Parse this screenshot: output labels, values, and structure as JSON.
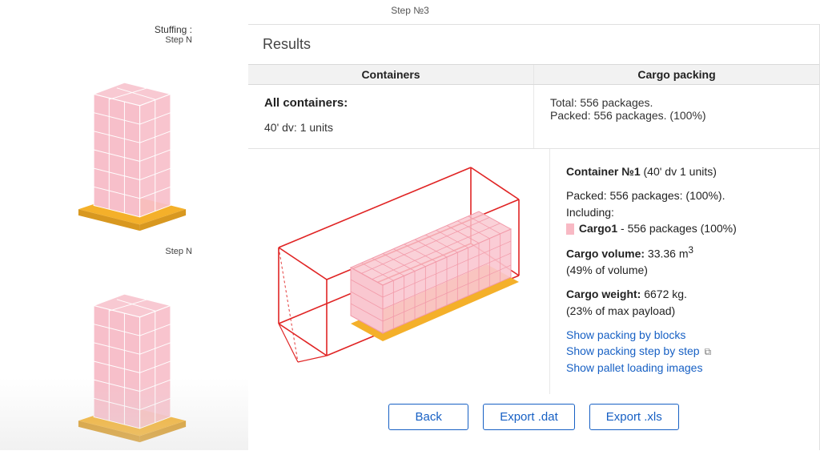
{
  "top_step": "Step №3",
  "sidebar": {
    "stuffing_label": "Stuffing :",
    "step_label_1": "Step N",
    "step_label_2": "Step N",
    "pallet": {
      "box_fill": "#f7bfca",
      "box_stroke": "#ffffff",
      "pallet_top": "#f4b02a",
      "pallet_side": "#d89820"
    }
  },
  "main": {
    "results_title": "Results",
    "headers": {
      "containers": "Containers",
      "cargo": "Cargo packing"
    },
    "row1": {
      "all_containers_label": "All containers:",
      "container_line": "40' dv: 1 units",
      "total_line": "Total: 556 packages.",
      "packed_line": "Packed: 556 packages. (100%)"
    },
    "container_svg": {
      "outline": "#e02424",
      "fill": "#f9c7d0",
      "floor": "#f4b02a",
      "grid": "#f29aa9"
    },
    "row2": {
      "container_title_strong": "Container №1",
      "container_title_rest": " (40' dv 1 units)",
      "packed": "Packed: 556 packages: (100%).",
      "including": "Including:",
      "cargo1_strong": "Cargo1",
      "cargo1_rest": " - 556 packages (100%)",
      "vol_label": "Cargo volume:",
      "vol_val": " 33.36 m",
      "vol_sup": "3",
      "vol_pct": "(49% of volume)",
      "wt_label": "Cargo weight:",
      "wt_val": " 6672 kg.",
      "wt_pct": "(23% of max payload)",
      "link1": "Show packing by blocks",
      "link2": "Show packing step by step",
      "link3": "Show pallet loading images"
    },
    "buttons": {
      "back": "Back",
      "export_dat": "Export .dat",
      "export_xls": "Export .xls"
    }
  }
}
